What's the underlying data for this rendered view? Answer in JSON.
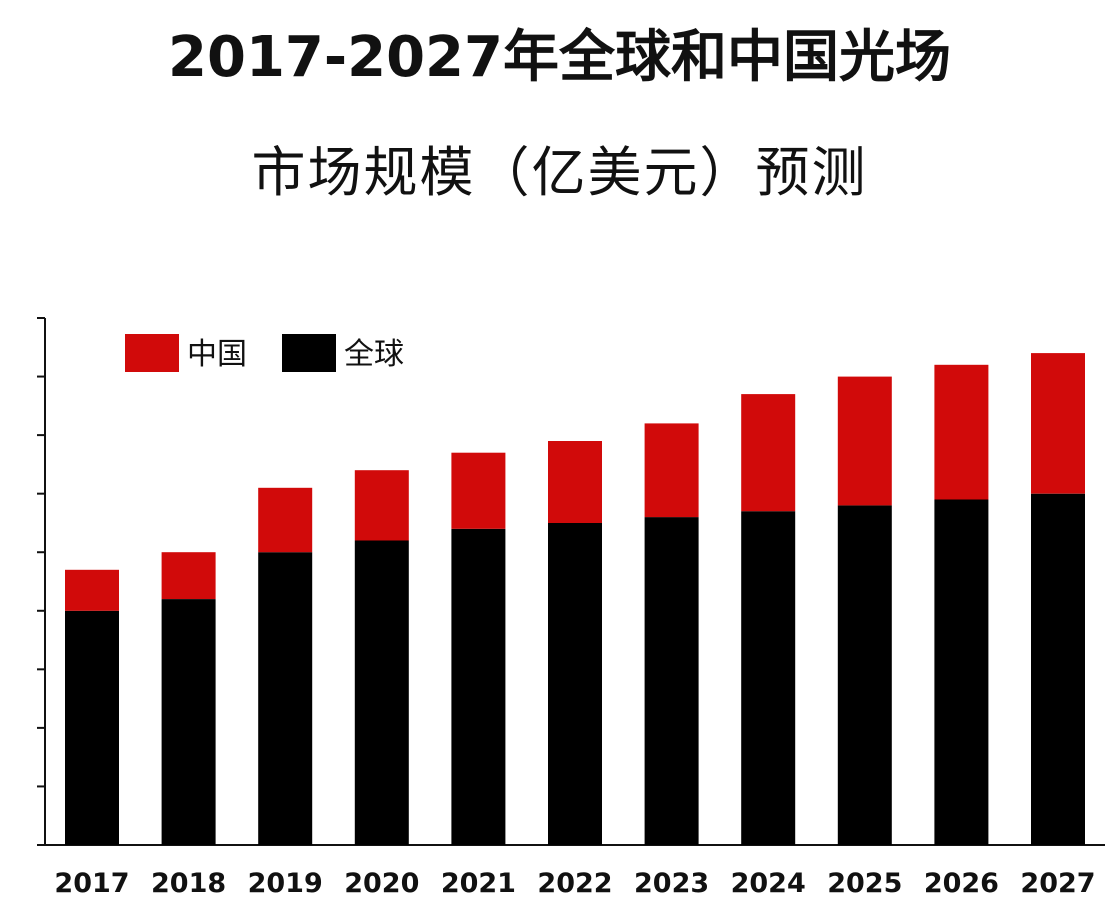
{
  "header": {
    "title_line1": "2017-2027年全球和中国光场",
    "title_line2": "市场规模（亿美元）预测"
  },
  "chart_data": {
    "type": "bar",
    "stacked": true,
    "title": "2017-2027年全球和中国光场市场规模（亿美元）预测",
    "categories": [
      "2017",
      "2018",
      "2019",
      "2020",
      "2021",
      "2022",
      "2023",
      "2024",
      "2025",
      "2026",
      "2027"
    ],
    "series": [
      {
        "name": "全球",
        "color": "#000000",
        "values": [
          40,
          42,
          50,
          52,
          54,
          55,
          56,
          57,
          58,
          59,
          60
        ]
      },
      {
        "name": "中国",
        "color": "#d10a0a",
        "values": [
          7,
          8,
          11,
          12,
          13,
          14,
          16,
          20,
          22,
          23,
          24
        ]
      }
    ],
    "ylim": [
      0,
      90
    ],
    "y_ticks": [
      0,
      10,
      20,
      30,
      40,
      50,
      60,
      70,
      80,
      90
    ],
    "y_tick_labels_shown": false,
    "legend_position": "top-left",
    "grid": false
  }
}
